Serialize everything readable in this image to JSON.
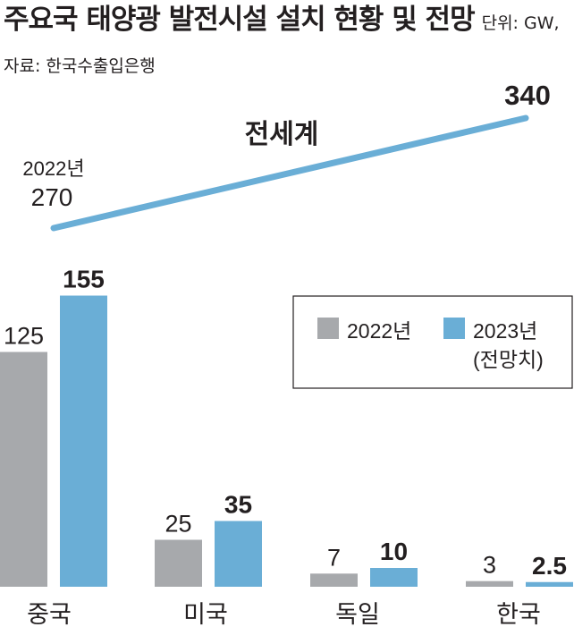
{
  "header": {
    "title": "주요국 태양광 발전시설 설치 현황 및 전망",
    "subtitle": "단위: GW, 자료: 한국수출입은행"
  },
  "colors": {
    "y2022": "#a7a9ac",
    "y2023": "#6aaed6",
    "text": "#231f20",
    "line": "#6aaed6"
  },
  "chart_data": {
    "type": "bar",
    "title": "주요국 태양광 발전시설 설치 현황 및 전망",
    "unit": "GW",
    "source": "한국수출입은행",
    "categories": [
      "중국",
      "미국",
      "독일",
      "한국"
    ],
    "series": [
      {
        "name": "2022년",
        "values": [
          125,
          25,
          7,
          3
        ]
      },
      {
        "name": "2023년",
        "name_note": "(전망치)",
        "values": [
          155,
          35,
          10,
          2.5
        ]
      }
    ],
    "ylim": [
      0,
      160
    ],
    "world": {
      "label": "전세계",
      "start_year": "2022년",
      "start_value": 270,
      "end_value": 340
    },
    "legend_position": "right"
  }
}
